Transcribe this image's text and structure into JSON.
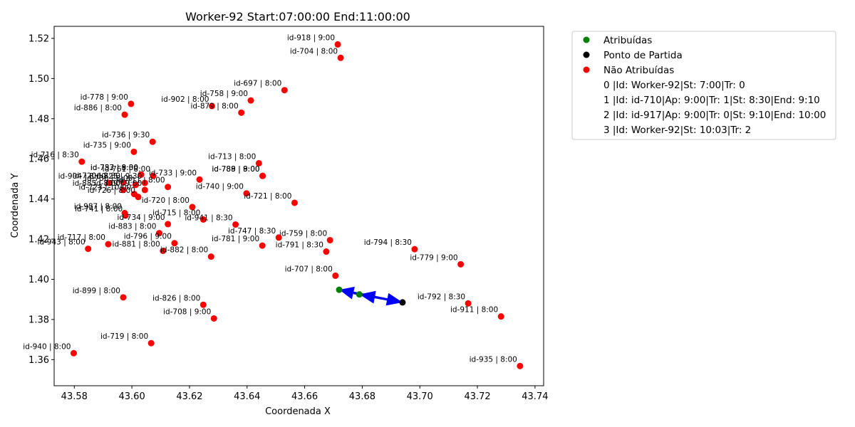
{
  "chart_data": {
    "type": "scatter",
    "title": "Worker-92 Start:07:00:00 End:11:00:00",
    "xlabel": "Coordenada X",
    "ylabel": "Coordenada Y",
    "xlim": [
      43.573,
      43.743
    ],
    "ylim": [
      1.347,
      1.526
    ],
    "xticks": [
      "43.58",
      "43.60",
      "43.62",
      "43.64",
      "43.66",
      "43.68",
      "43.70",
      "43.72",
      "43.74"
    ],
    "yticks": [
      "1.36",
      "1.38",
      "1.40",
      "1.42",
      "1.44",
      "1.46",
      "1.48",
      "1.50",
      "1.52"
    ],
    "grid": false,
    "legend_position": "outside-right",
    "colors": {
      "assigned": "#008000",
      "start": "#000000",
      "unassigned": "#ff0000",
      "route": "#0000ff"
    },
    "legend": [
      {
        "type": "marker",
        "color": "#008000",
        "label": "Atribuídas"
      },
      {
        "type": "marker",
        "color": "#000000",
        "label": "Ponto de Partida"
      },
      {
        "type": "marker",
        "color": "#ff0000",
        "label": "Não Atribuídas"
      },
      {
        "type": "text",
        "label": "0 |Id: Worker-92|St: 7:00|Tr: 0"
      },
      {
        "type": "text",
        "label": "1 |Id: id-710|Ap: 9:00|Tr: 1|St: 8:30|End: 9:10"
      },
      {
        "type": "text",
        "label": "2 |Id: id-917|Ap: 9:00|Tr: 0|St: 9:10|End: 10:00"
      },
      {
        "type": "text",
        "label": "3 |Id: Worker-92|St: 10:03|Tr: 2"
      }
    ],
    "start_point": {
      "x": 43.694,
      "y": 1.3885
    },
    "assigned_points": [
      {
        "x": 43.672,
        "y": 1.3948
      },
      {
        "x": 43.679,
        "y": 1.3925
      }
    ],
    "route": [
      {
        "x": 43.694,
        "y": 1.3885
      },
      {
        "x": 43.679,
        "y": 1.3925
      },
      {
        "x": 43.672,
        "y": 1.3948
      },
      {
        "x": 43.694,
        "y": 1.3885
      }
    ],
    "unassigned_points": [
      {
        "x": 43.6715,
        "y": 1.517,
        "label": "id-918 | 9:00"
      },
      {
        "x": 43.6725,
        "y": 1.5103,
        "label": "id-704 | 8:00"
      },
      {
        "x": 43.653,
        "y": 1.4942,
        "label": "id-697 | 8:00"
      },
      {
        "x": 43.6413,
        "y": 1.4891,
        "label": "id-758 | 9:00"
      },
      {
        "x": 43.6278,
        "y": 1.4863,
        "label": "id-902 | 8:00"
      },
      {
        "x": 43.638,
        "y": 1.483,
        "label": "id-879 | 8:00"
      },
      {
        "x": 43.5997,
        "y": 1.4874,
        "label": "id-778 | 9:00"
      },
      {
        "x": 43.5975,
        "y": 1.482,
        "label": "id-886 | 8:00"
      },
      {
        "x": 43.6072,
        "y": 1.4685,
        "label": "id-736 | 9:30"
      },
      {
        "x": 43.6007,
        "y": 1.4635,
        "label": "id-735 | 9:00"
      },
      {
        "x": 43.5826,
        "y": 1.4586,
        "label": "id-716 | 8:30"
      },
      {
        "x": 43.6441,
        "y": 1.4578,
        "label": "id-713 | 8:00"
      },
      {
        "x": 43.6454,
        "y": 1.4515,
        "label": "id-789 | 9:00"
      },
      {
        "x": 43.6454,
        "y": 1.4515,
        "label": "id-788 | 8:00"
      },
      {
        "x": 43.6074,
        "y": 1.4515,
        "label": "id-761 | 8:00"
      },
      {
        "x": 43.6235,
        "y": 1.4497,
        "label": "id-733 | 9:00"
      },
      {
        "x": 43.6032,
        "y": 1.4522,
        "label": "id-737 | 9:00"
      },
      {
        "x": 43.6032,
        "y": 1.4522,
        "label": "id-753 | 8:30"
      },
      {
        "x": 43.592,
        "y": 1.448,
        "label": "id-904 | 8:00"
      },
      {
        "x": 43.597,
        "y": 1.4482,
        "label": "id-720 | 8:30"
      },
      {
        "x": 43.6045,
        "y": 1.448,
        "label": "id-725 | 9:30"
      },
      {
        "x": 43.6013,
        "y": 1.447,
        "label": "id-730 | 8:00"
      },
      {
        "x": 43.597,
        "y": 1.4445,
        "label": "id-885 | 8:00"
      },
      {
        "x": 43.6045,
        "y": 1.4445,
        "label": "id-709 | 9:00"
      },
      {
        "x": 43.6008,
        "y": 1.4425,
        "label": "id-723 | 10:00"
      },
      {
        "x": 43.6022,
        "y": 1.441,
        "label": "id-726 | 8:00"
      },
      {
        "x": 43.6125,
        "y": 1.446,
        "label": "id-711 | 8:00"
      },
      {
        "x": 43.6398,
        "y": 1.4428,
        "label": "id-740 | 9:00"
      },
      {
        "x": 43.6565,
        "y": 1.4381,
        "label": "id-721 | 8:00"
      },
      {
        "x": 43.621,
        "y": 1.436,
        "label": "id-720 | 8:00"
      },
      {
        "x": 43.5975,
        "y": 1.433,
        "label": "id-987 | 8:00"
      },
      {
        "x": 43.5978,
        "y": 1.4318,
        "label": "id-741 | 8:00"
      },
      {
        "x": 43.6248,
        "y": 1.4298,
        "label": "id-715 | 8:00"
      },
      {
        "x": 43.6125,
        "y": 1.4275,
        "label": "id-734 | 9:00"
      },
      {
        "x": 43.636,
        "y": 1.4273,
        "label": "id-941 | 8:30"
      },
      {
        "x": 43.6095,
        "y": 1.423,
        "label": "id-883 | 8:00"
      },
      {
        "x": 43.651,
        "y": 1.4208,
        "label": "id-747 | 8:30"
      },
      {
        "x": 43.6688,
        "y": 1.4195,
        "label": "id-759 | 8:00"
      },
      {
        "x": 43.6148,
        "y": 1.418,
        "label": "id-796 | 9:00"
      },
      {
        "x": 43.5918,
        "y": 1.4175,
        "label": "id-717 | 8:00"
      },
      {
        "x": 43.6453,
        "y": 1.4168,
        "label": "id-781 | 9:00"
      },
      {
        "x": 43.5848,
        "y": 1.4152,
        "label": "id-943 | 8:00"
      },
      {
        "x": 43.6108,
        "y": 1.4142,
        "label": "id-881 | 8:00"
      },
      {
        "x": 43.6675,
        "y": 1.4138,
        "label": "id-791 | 8:30"
      },
      {
        "x": 43.6982,
        "y": 1.415,
        "label": "id-794 | 8:30"
      },
      {
        "x": 43.6275,
        "y": 1.4113,
        "label": "id-882 | 8:00"
      },
      {
        "x": 43.7142,
        "y": 1.4075,
        "label": "id-779 | 9:00"
      },
      {
        "x": 43.6707,
        "y": 1.4018,
        "label": "id-707 | 8:00"
      },
      {
        "x": 43.597,
        "y": 1.391,
        "label": "id-899 | 8:00"
      },
      {
        "x": 43.7168,
        "y": 1.388,
        "label": "id-792 | 8:30"
      },
      {
        "x": 43.6248,
        "y": 1.3873,
        "label": "id-826 | 8:00"
      },
      {
        "x": 43.7282,
        "y": 1.3815,
        "label": "id-911 | 8:00"
      },
      {
        "x": 43.6285,
        "y": 1.3805,
        "label": "id-708 | 9:00"
      },
      {
        "x": 43.6067,
        "y": 1.3682,
        "label": "id-719 | 8:00"
      },
      {
        "x": 43.5798,
        "y": 1.3632,
        "label": "id-940 | 8:00"
      },
      {
        "x": 43.7348,
        "y": 1.3568,
        "label": "id-935 | 8:00"
      }
    ]
  }
}
